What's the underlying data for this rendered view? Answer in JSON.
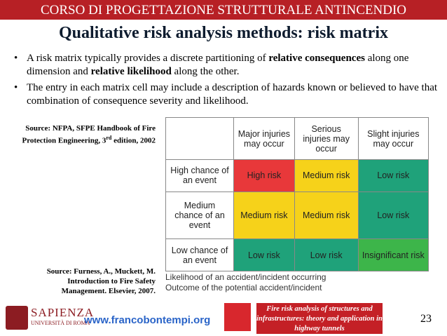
{
  "header": {
    "course": "CORSO DI PROGETTAZIONE STRUTTURALE ANTINCENDIO",
    "title": "Qualitative risk analysis methods: risk matrix"
  },
  "bullets": [
    [
      {
        "text": "A risk matrix typically provides a discrete partitioning of ",
        "bold": false
      },
      {
        "text": "relative consequences",
        "bold": true
      },
      {
        "text": " along one dimension and ",
        "bold": false
      },
      {
        "text": "relative likelihood",
        "bold": true
      },
      {
        "text": " along the other.",
        "bold": false
      }
    ],
    [
      {
        "text": "The entry in each matrix cell may include a description of hazards known or believed to have that combination of consequence severity and likelihood.",
        "bold": false
      }
    ]
  ],
  "sources": {
    "first": {
      "main": "Source: NFPA, SFPE Handbook of Fire Protection Engineering,",
      "edition_number": "3",
      "edition_suffix": "rd",
      "edition_rest": " edition, 2002"
    },
    "second": "Source: Furness, A., Muckett, M. Introduction to Fire Safety Management. Elsevier, 2007."
  },
  "matrix": {
    "columns": [
      "Major injuries may occur",
      "Serious injuries may occur",
      "Slight injuries may occur"
    ],
    "rows": [
      {
        "label": "High chance of an event",
        "cells": [
          {
            "text": "High risk",
            "color": "#e8383a"
          },
          {
            "text": "Medium risk",
            "color": "#f6d21a"
          },
          {
            "text": "Low risk",
            "color": "#1fa27a"
          }
        ]
      },
      {
        "label": "Medium chance of an event",
        "cells": [
          {
            "text": "Medium risk",
            "color": "#f6d21a"
          },
          {
            "text": "Medium risk",
            "color": "#f6d21a"
          },
          {
            "text": "Low risk",
            "color": "#1fa27a"
          }
        ]
      },
      {
        "label": "Low chance of an event",
        "cells": [
          {
            "text": "Low risk",
            "color": "#1fa27a"
          },
          {
            "text": "Low risk",
            "color": "#1fa27a"
          },
          {
            "text": "Insignificant risk",
            "color": "#3db54a"
          }
        ]
      }
    ],
    "captions": [
      "Likelihood of an accident/incident occurring",
      "Outcome of the potential accident/incident"
    ]
  },
  "footer": {
    "logo_name": "SAPIENZA",
    "logo_sub": "UNIVERSITÀ DI ROMA",
    "website": "www.francobontempi.org",
    "course_note": "Fire risk analysis of structures and infrastructures: theory and application in highway tunnels",
    "page": "23"
  }
}
